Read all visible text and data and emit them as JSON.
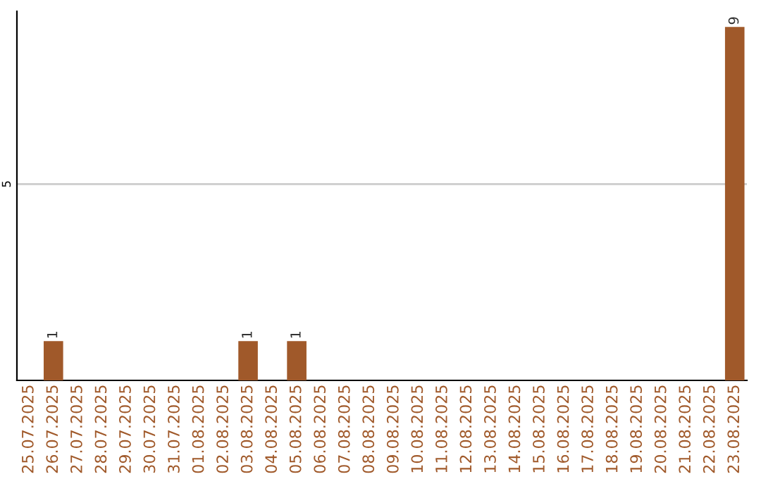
{
  "chart_data": {
    "type": "bar",
    "categories": [
      "25.07.2025",
      "26.07.2025",
      "27.07.2025",
      "28.07.2025",
      "29.07.2025",
      "30.07.2025",
      "31.07.2025",
      "01.08.2025",
      "02.08.2025",
      "03.08.2025",
      "04.08.2025",
      "05.08.2025",
      "06.08.2025",
      "07.08.2025",
      "08.08.2025",
      "09.08.2025",
      "10.08.2025",
      "11.08.2025",
      "12.08.2025",
      "13.08.2025",
      "14.08.2025",
      "15.08.2025",
      "16.08.2025",
      "17.08.2025",
      "18.08.2025",
      "19.08.2025",
      "20.08.2025",
      "21.08.2025",
      "22.08.2025",
      "23.08.2025"
    ],
    "values": [
      0,
      1,
      0,
      0,
      0,
      0,
      0,
      0,
      0,
      1,
      0,
      1,
      0,
      0,
      0,
      0,
      0,
      0,
      0,
      0,
      0,
      0,
      0,
      0,
      0,
      0,
      0,
      0,
      0,
      9
    ],
    "value_labels": [
      null,
      "1",
      null,
      null,
      null,
      null,
      null,
      null,
      null,
      "1",
      null,
      "1",
      null,
      null,
      null,
      null,
      null,
      null,
      null,
      null,
      null,
      null,
      null,
      null,
      null,
      null,
      null,
      null,
      null,
      "9"
    ],
    "color": "#a0592a",
    "ylim": [
      0,
      9.4
    ],
    "yticks": [
      5
    ],
    "grid": "y"
  }
}
